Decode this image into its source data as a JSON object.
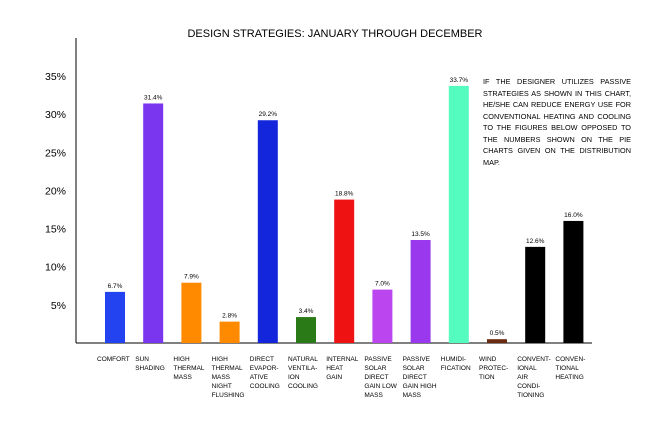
{
  "chart_data": {
    "type": "bar",
    "title": "DESIGN STRATEGIES: JANUARY THROUGH DECEMBER",
    "annotation": "IF THE DESIGNER UTILIZES PASSIVE STRATEGIES AS SHOWN IN THIS CHART, HE/SHE CAN REDUCE ENERGY USE FOR CONVENTIONAL HEATING AND COOLING TO THE FIGURES BELOW OPPOSED TO THE NUMBERS SHOWN ON THE PIE CHARTS GIVEN ON THE DISTRIBUTION MAP.",
    "categories": [
      "COMFORT",
      "SUN\nSHADING",
      "HIGH\nTHERMAL\nMASS",
      "HIGH\nTHERMAL\nMASS\nNIGHT\nFLUSHING",
      "DIRECT\nEVAPOR-\nATIVE\nCOOLING",
      "NATURAL\nVENTILA-\nION\nCOOLING",
      "INTERNAL\nHEAT\nGAIN",
      "PASSIVE\nSOLAR\nDIRECT\nGAIN LOW\nMASS",
      "PASSIVE\nSOLAR\nDIRECT\nGAIN HIGH\nMASS",
      "HUMIDI-\nFICATION",
      "WIND\nPROTEC-\nTION",
      "CONVENT-\nIONAL\nAIR\nCONDI-\nTIONING",
      "CONVEN-\nTIONAL\nHEATING"
    ],
    "values": [
      6.7,
      31.4,
      7.9,
      2.8,
      29.2,
      3.4,
      18.8,
      7.0,
      13.5,
      33.7,
      0.5,
      12.6,
      16.0
    ],
    "value_labels": [
      "6.7%",
      "31.4%",
      "7.9%",
      "2.8%",
      "29.2%",
      "3.4%",
      "18.8%",
      "7.0%",
      "13.5%",
      "33.7%",
      "0.5%",
      "12.6%",
      "16.0%"
    ],
    "colors": [
      "#2343f0",
      "#7a35ee",
      "#ff8a00",
      "#ff8a00",
      "#1326dc",
      "#2a7a17",
      "#ee1212",
      "#bb46ef",
      "#9a38ee",
      "#55fcbf",
      "#6b2a10",
      "#000000",
      "#000000"
    ],
    "ylim": [
      0,
      40
    ],
    "yticks": [
      {
        "value": 5,
        "label": "5%"
      },
      {
        "value": 10,
        "label": "10%"
      },
      {
        "value": 15,
        "label": "15%"
      },
      {
        "value": 20,
        "label": "20%"
      },
      {
        "value": 25,
        "label": "25%"
      },
      {
        "value": 30,
        "label": "30%"
      },
      {
        "value": 35,
        "label": "35%"
      }
    ],
    "grid": false
  }
}
